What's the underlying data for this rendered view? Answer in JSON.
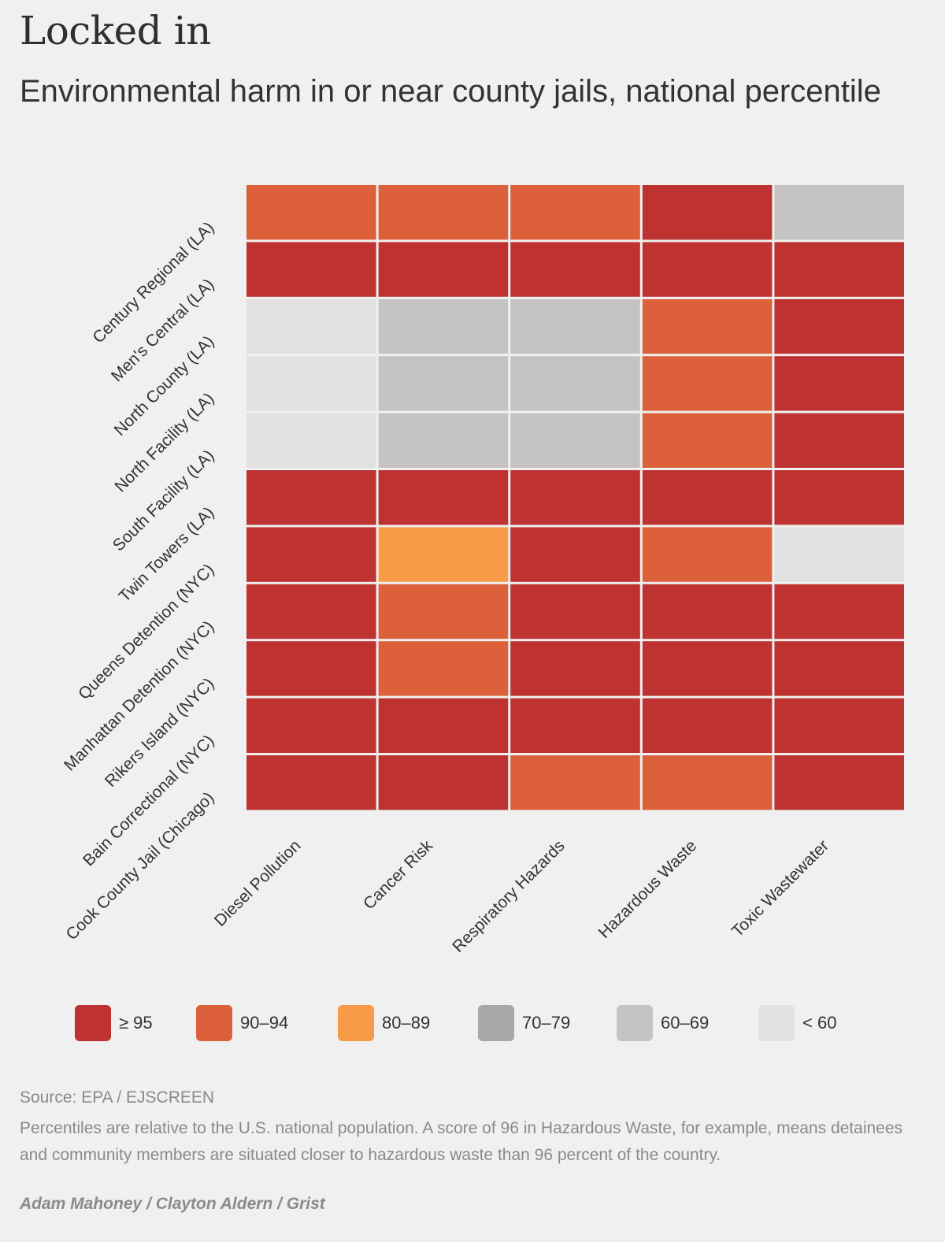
{
  "title": "Locked in",
  "subtitle": "Environmental harm in or near county jails, national percentile",
  "colors": {
    "ge95": "#bf3232",
    "90-94": "#dc613b",
    "80-89": "#f79b49",
    "70-79": "#a8a8a8",
    "60-69": "#c5c4c2",
    "lt60": "#e1e1df"
  },
  "legend": [
    {
      "label": "≥ 95",
      "key": "ge95"
    },
    {
      "label": "90–94",
      "key": "90-94"
    },
    {
      "label": "80–89",
      "key": "80-89"
    },
    {
      "label": "70–79",
      "key": "70-79"
    },
    {
      "label": "60–69",
      "key": "60-69"
    },
    {
      "label": "< 60",
      "key": "lt60"
    }
  ],
  "chart_data": {
    "type": "heatmap",
    "rows": [
      "Century Regional (LA)",
      "Men's Central (LA)",
      "North County (LA)",
      "North Facility (LA)",
      "South Facility (LA)",
      "Twin Towers (LA)",
      "Queens Detention (NYC)",
      "Manhattan Detention (NYC)",
      "Rikers Island (NYC)",
      "Bain Correctional (NYC)",
      "Cook County Jail (Chicago)"
    ],
    "columns": [
      "Diesel Pollution",
      "Cancer Risk",
      "Respiratory Hazards",
      "Hazardous Waste",
      "Toxic Wastewater"
    ],
    "bins": [
      [
        "90-94",
        "90-94",
        "90-94",
        "ge95",
        "60-69"
      ],
      [
        "ge95",
        "ge95",
        "ge95",
        "ge95",
        "ge95"
      ],
      [
        "lt60",
        "60-69",
        "60-69",
        "90-94",
        "ge95"
      ],
      [
        "lt60",
        "60-69",
        "60-69",
        "90-94",
        "ge95"
      ],
      [
        "lt60",
        "60-69",
        "60-69",
        "90-94",
        "ge95"
      ],
      [
        "ge95",
        "ge95",
        "ge95",
        "ge95",
        "ge95"
      ],
      [
        "ge95",
        "80-89",
        "ge95",
        "90-94",
        "lt60"
      ],
      [
        "ge95",
        "90-94",
        "ge95",
        "ge95",
        "ge95"
      ],
      [
        "ge95",
        "90-94",
        "ge95",
        "ge95",
        "ge95"
      ],
      [
        "ge95",
        "ge95",
        "ge95",
        "ge95",
        "ge95"
      ],
      [
        "ge95",
        "ge95",
        "90-94",
        "90-94",
        "ge95"
      ]
    ]
  },
  "source": "Source: EPA / EJSCREEN",
  "note": "Percentiles are relative to the U.S. national population. A score of 96 in Hazardous Waste, for example, means detainees and community members are situated closer to hazardous waste than 96 percent of the country.",
  "credit": "Adam Mahoney / Clayton Aldern / Grist"
}
